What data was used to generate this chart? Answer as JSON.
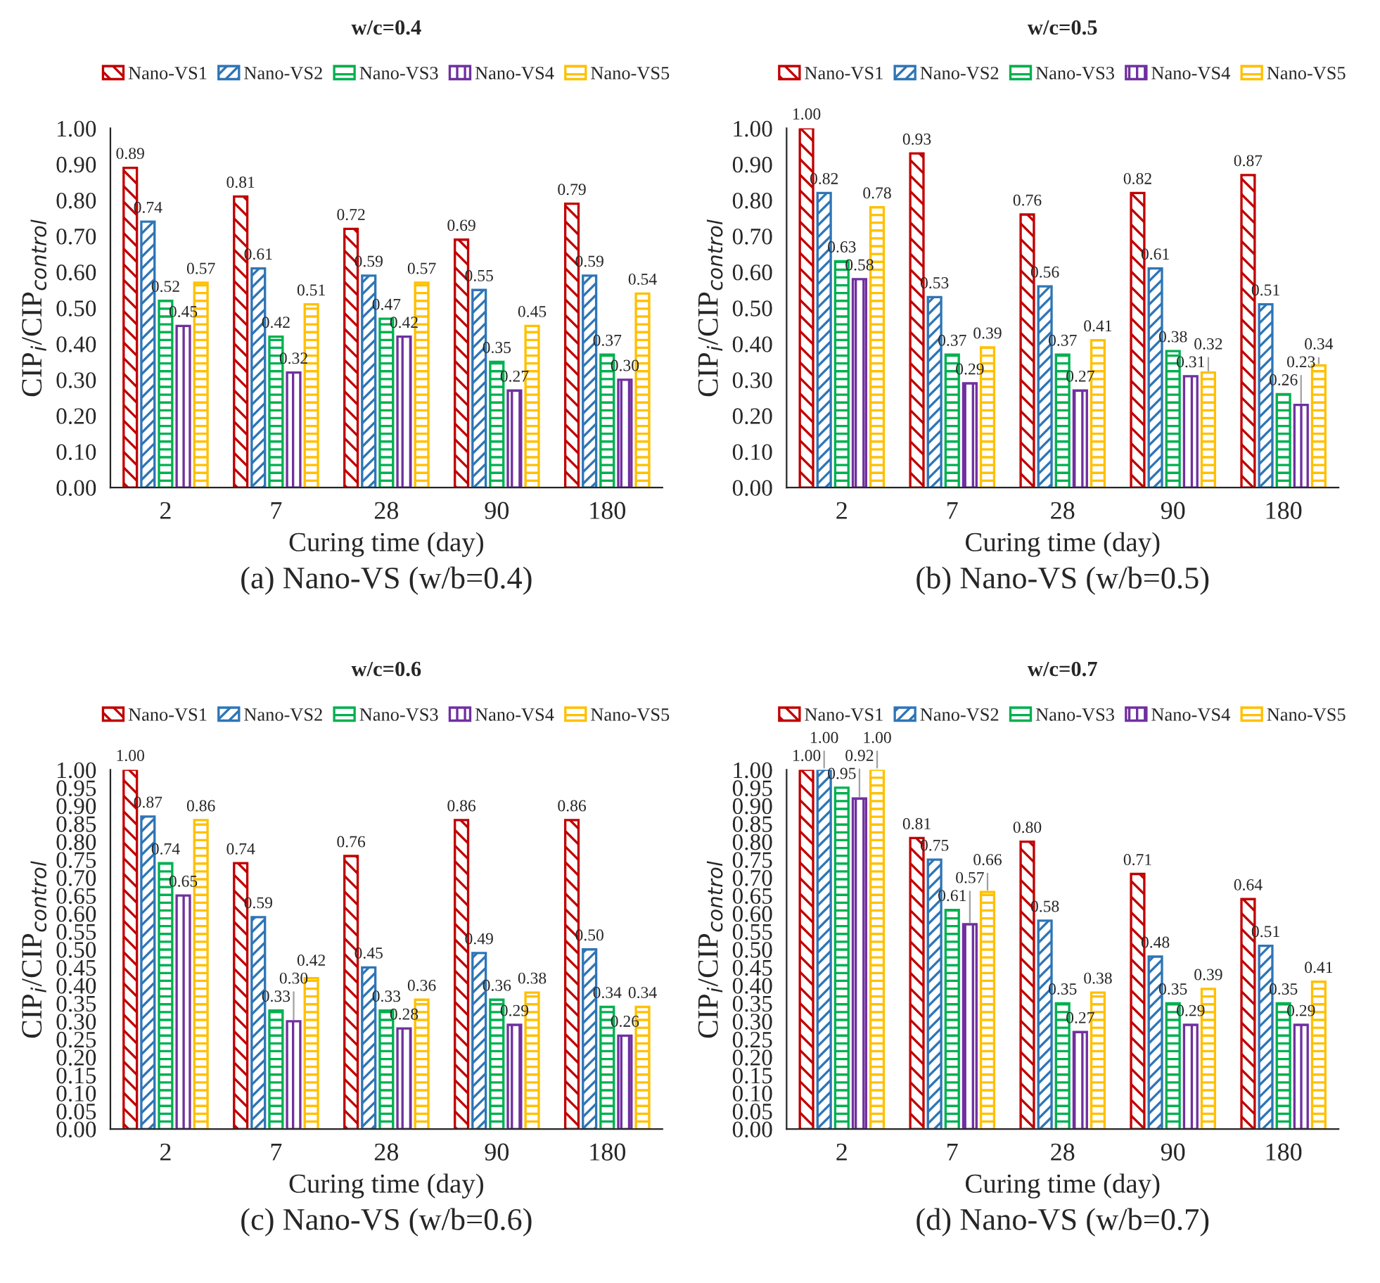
{
  "chart_data": [
    {
      "type": "bar",
      "title": "w/c=0.4",
      "xlabel": "Curing time (day)",
      "ylabel": "CIP$_{i}$/CIP$_{control}$",
      "categories": [
        "2",
        "7",
        "28",
        "90",
        "180"
      ],
      "ylim": [
        0,
        1.0
      ],
      "yticks": [
        {
          "value": 0,
          "label": "0.00"
        },
        {
          "value": 0.1,
          "label": "0.10"
        },
        {
          "value": 0.2,
          "label": "0.20"
        },
        {
          "value": 0.3,
          "label": "0.30"
        },
        {
          "value": 0.4,
          "label": "0.40"
        },
        {
          "value": 0.5,
          "label": "0.50"
        },
        {
          "value": 0.6,
          "label": "0.60"
        },
        {
          "value": 0.7,
          "label": "0.70"
        },
        {
          "value": 0.8,
          "label": "0.80"
        },
        {
          "value": 0.9,
          "label": "0.90"
        },
        {
          "value": 1.0,
          "label": "1.00"
        }
      ],
      "legend": "top",
      "grid": false,
      "annotations": [
        "(a) Nano-VS (w/b=0.4)"
      ],
      "series": [
        {
          "name": "Nano-VS1",
          "color": "#c00000",
          "values": [
            0.89,
            0.81,
            0.72,
            0.69,
            0.79
          ],
          "value_labels": [
            "0.89",
            "0.81",
            "0.72",
            "0.69",
            "0.79"
          ]
        },
        {
          "name": "Nano-VS2",
          "color": "#2e75b6",
          "values": [
            0.74,
            0.61,
            0.59,
            0.55,
            0.59
          ],
          "value_labels": [
            "0.74",
            "0.61",
            "0.59",
            "0.55",
            "0.59"
          ]
        },
        {
          "name": "Nano-VS3",
          "color": "#00b050",
          "values": [
            0.52,
            0.42,
            0.47,
            0.35,
            0.37
          ],
          "value_labels": [
            "0.52",
            "0.42",
            "0.47",
            "0.35",
            "0.37"
          ]
        },
        {
          "name": "Nano-VS4",
          "color": "#7030a0",
          "values": [
            0.45,
            0.32,
            0.42,
            0.27,
            0.3
          ],
          "value_labels": [
            "0.45",
            "0.32",
            "0.42",
            "0.27",
            "0.30"
          ]
        },
        {
          "name": "Nano-VS5",
          "color": "#ffc000",
          "values": [
            0.57,
            0.51,
            0.57,
            0.45,
            0.54
          ],
          "value_labels": [
            "0.57",
            "0.51",
            "0.57",
            "0.45",
            "0.54"
          ]
        }
      ]
    },
    {
      "type": "bar",
      "title": "w/c=0.5",
      "xlabel": "Curing time (day)",
      "ylabel": "CIP$_{i}$/CIP$_{control}$",
      "categories": [
        "2",
        "7",
        "28",
        "90",
        "180"
      ],
      "ylim": [
        0,
        1.0
      ],
      "yticks": [
        {
          "value": 0,
          "label": "0.00"
        },
        {
          "value": 0.1,
          "label": "0.10"
        },
        {
          "value": 0.2,
          "label": "0.20"
        },
        {
          "value": 0.3,
          "label": "0.30"
        },
        {
          "value": 0.4,
          "label": "0.40"
        },
        {
          "value": 0.5,
          "label": "0.50"
        },
        {
          "value": 0.6,
          "label": "0.60"
        },
        {
          "value": 0.7,
          "label": "0.70"
        },
        {
          "value": 0.8,
          "label": "0.80"
        },
        {
          "value": 0.9,
          "label": "0.90"
        },
        {
          "value": 1.0,
          "label": "1.00"
        }
      ],
      "legend": "top",
      "grid": false,
      "annotations": [
        "(b) Nano-VS (w/b=0.5)"
      ],
      "series": [
        {
          "name": "Nano-VS1",
          "color": "#c00000",
          "values": [
            1.0,
            0.93,
            0.76,
            0.82,
            0.87
          ],
          "value_labels": [
            "1.00",
            "0.93",
            "0.76",
            "0.82",
            "0.87"
          ]
        },
        {
          "name": "Nano-VS2",
          "color": "#2e75b6",
          "values": [
            0.82,
            0.53,
            0.56,
            0.61,
            0.51
          ],
          "value_labels": [
            "0.82",
            "0.53",
            "0.56",
            "0.61",
            "0.51"
          ]
        },
        {
          "name": "Nano-VS3",
          "color": "#00b050",
          "values": [
            0.63,
            0.37,
            0.37,
            0.38,
            0.26
          ],
          "value_labels": [
            "0.63",
            "0.37",
            "0.37",
            "0.38",
            "0.26"
          ]
        },
        {
          "name": "Nano-VS4",
          "color": "#7030a0",
          "values": [
            0.58,
            0.29,
            0.27,
            0.31,
            0.23
          ],
          "value_labels": [
            "0.58",
            "0.29",
            "0.27",
            "0.31",
            "0.23"
          ]
        },
        {
          "name": "Nano-VS5",
          "color": "#ffc000",
          "values": [
            0.78,
            0.39,
            0.41,
            0.32,
            0.34
          ],
          "value_labels": [
            "0.78",
            "0.39",
            "0.41",
            "0.32",
            "0.34"
          ]
        }
      ]
    },
    {
      "type": "bar",
      "title": "w/c=0.6",
      "xlabel": "Curing time (day)",
      "ylabel": "CIP$_{i}$/CIP$_{control}$",
      "categories": [
        "2",
        "7",
        "28",
        "90",
        "180"
      ],
      "ylim": [
        0,
        1.0
      ],
      "yticks": [
        {
          "value": 0,
          "label": "0.00"
        },
        {
          "value": 0.05,
          "label": "0.05"
        },
        {
          "value": 0.1,
          "label": "0.10"
        },
        {
          "value": 0.15,
          "label": "0.15"
        },
        {
          "value": 0.2,
          "label": "0.20"
        },
        {
          "value": 0.25,
          "label": "0.25"
        },
        {
          "value": 0.3,
          "label": "0.30"
        },
        {
          "value": 0.35,
          "label": "0.35"
        },
        {
          "value": 0.4,
          "label": "0.40"
        },
        {
          "value": 0.45,
          "label": "0.45"
        },
        {
          "value": 0.5,
          "label": "0.50"
        },
        {
          "value": 0.55,
          "label": "0.55"
        },
        {
          "value": 0.6,
          "label": "0.60"
        },
        {
          "value": 0.65,
          "label": "0.65"
        },
        {
          "value": 0.7,
          "label": "0.70"
        },
        {
          "value": 0.75,
          "label": "0.75"
        },
        {
          "value": 0.8,
          "label": "0.80"
        },
        {
          "value": 0.85,
          "label": "0.85"
        },
        {
          "value": 0.9,
          "label": "0.90"
        },
        {
          "value": 0.95,
          "label": "0.95"
        },
        {
          "value": 1.0,
          "label": "1.00"
        }
      ],
      "legend": "top",
      "grid": false,
      "annotations": [
        "(c) Nano-VS (w/b=0.6)"
      ],
      "series": [
        {
          "name": "Nano-VS1",
          "color": "#c00000",
          "values": [
            1.0,
            0.74,
            0.76,
            0.86,
            0.86
          ],
          "value_labels": [
            "1.00",
            "0.74",
            "0.76",
            "0.86",
            "0.86"
          ]
        },
        {
          "name": "Nano-VS2",
          "color": "#2e75b6",
          "values": [
            0.87,
            0.59,
            0.45,
            0.49,
            0.5
          ],
          "value_labels": [
            "0.87",
            "0.59",
            "0.45",
            "0.49",
            "0.50"
          ]
        },
        {
          "name": "Nano-VS3",
          "color": "#00b050",
          "values": [
            0.74,
            0.33,
            0.33,
            0.36,
            0.34
          ],
          "value_labels": [
            "0.74",
            "0.33",
            "0.33",
            "0.36",
            "0.34"
          ]
        },
        {
          "name": "Nano-VS4",
          "color": "#7030a0",
          "values": [
            0.65,
            0.3,
            0.28,
            0.29,
            0.26
          ],
          "value_labels": [
            "0.65",
            "0.30",
            "0.28",
            "0.29",
            "0.26"
          ]
        },
        {
          "name": "Nano-VS5",
          "color": "#ffc000",
          "values": [
            0.86,
            0.42,
            0.36,
            0.38,
            0.34
          ],
          "value_labels": [
            "0.86",
            "0.42",
            "0.36",
            "0.38",
            "0.34"
          ]
        }
      ]
    },
    {
      "type": "bar",
      "title": "w/c=0.7",
      "xlabel": "Curing time (day)",
      "ylabel": "CIP$_{i}$/CIP$_{control}$",
      "categories": [
        "2",
        "7",
        "28",
        "90",
        "180"
      ],
      "ylim": [
        0,
        1.0
      ],
      "yticks": [
        {
          "value": 0,
          "label": "0.00"
        },
        {
          "value": 0.05,
          "label": "0.05"
        },
        {
          "value": 0.1,
          "label": "0.10"
        },
        {
          "value": 0.15,
          "label": "0.15"
        },
        {
          "value": 0.2,
          "label": "0.20"
        },
        {
          "value": 0.25,
          "label": "0.25"
        },
        {
          "value": 0.3,
          "label": "0.30"
        },
        {
          "value": 0.35,
          "label": "0.35"
        },
        {
          "value": 0.4,
          "label": "0.40"
        },
        {
          "value": 0.45,
          "label": "0.45"
        },
        {
          "value": 0.5,
          "label": "0.50"
        },
        {
          "value": 0.55,
          "label": "0.55"
        },
        {
          "value": 0.6,
          "label": "0.60"
        },
        {
          "value": 0.65,
          "label": "0.65"
        },
        {
          "value": 0.7,
          "label": "0.70"
        },
        {
          "value": 0.75,
          "label": "0.75"
        },
        {
          "value": 0.8,
          "label": "0.80"
        },
        {
          "value": 0.85,
          "label": "0.85"
        },
        {
          "value": 0.9,
          "label": "0.90"
        },
        {
          "value": 0.95,
          "label": "0.95"
        },
        {
          "value": 1.0,
          "label": "1.00"
        }
      ],
      "legend": "top",
      "grid": false,
      "annotations": [
        "(d) Nano-VS (w/b=0.7)"
      ],
      "series": [
        {
          "name": "Nano-VS1",
          "color": "#c00000",
          "values": [
            1.0,
            0.81,
            0.8,
            0.71,
            0.64
          ],
          "value_labels": [
            "1.00",
            "0.81",
            "0.80",
            "0.71",
            "0.64"
          ]
        },
        {
          "name": "Nano-VS2",
          "color": "#2e75b6",
          "values": [
            1.0,
            0.75,
            0.58,
            0.48,
            0.51
          ],
          "value_labels": [
            "1.00",
            "0.75",
            "0.58",
            "0.48",
            "0.51"
          ]
        },
        {
          "name": "Nano-VS3",
          "color": "#00b050",
          "values": [
            0.95,
            0.61,
            0.35,
            0.35,
            0.35
          ],
          "value_labels": [
            "0.95",
            "0.61",
            "0.35",
            "0.35",
            "0.35"
          ]
        },
        {
          "name": "Nano-VS4",
          "color": "#7030a0",
          "values": [
            0.92,
            0.57,
            0.27,
            0.29,
            0.29
          ],
          "value_labels": [
            "0.92",
            "0.57",
            "0.27",
            "0.29",
            "0.29"
          ]
        },
        {
          "name": "Nano-VS5",
          "color": "#ffc000",
          "values": [
            1.0,
            0.66,
            0.38,
            0.39,
            0.41
          ],
          "value_labels": [
            "1.00",
            "0.66",
            "0.38",
            "0.39",
            "0.41"
          ]
        }
      ]
    }
  ]
}
